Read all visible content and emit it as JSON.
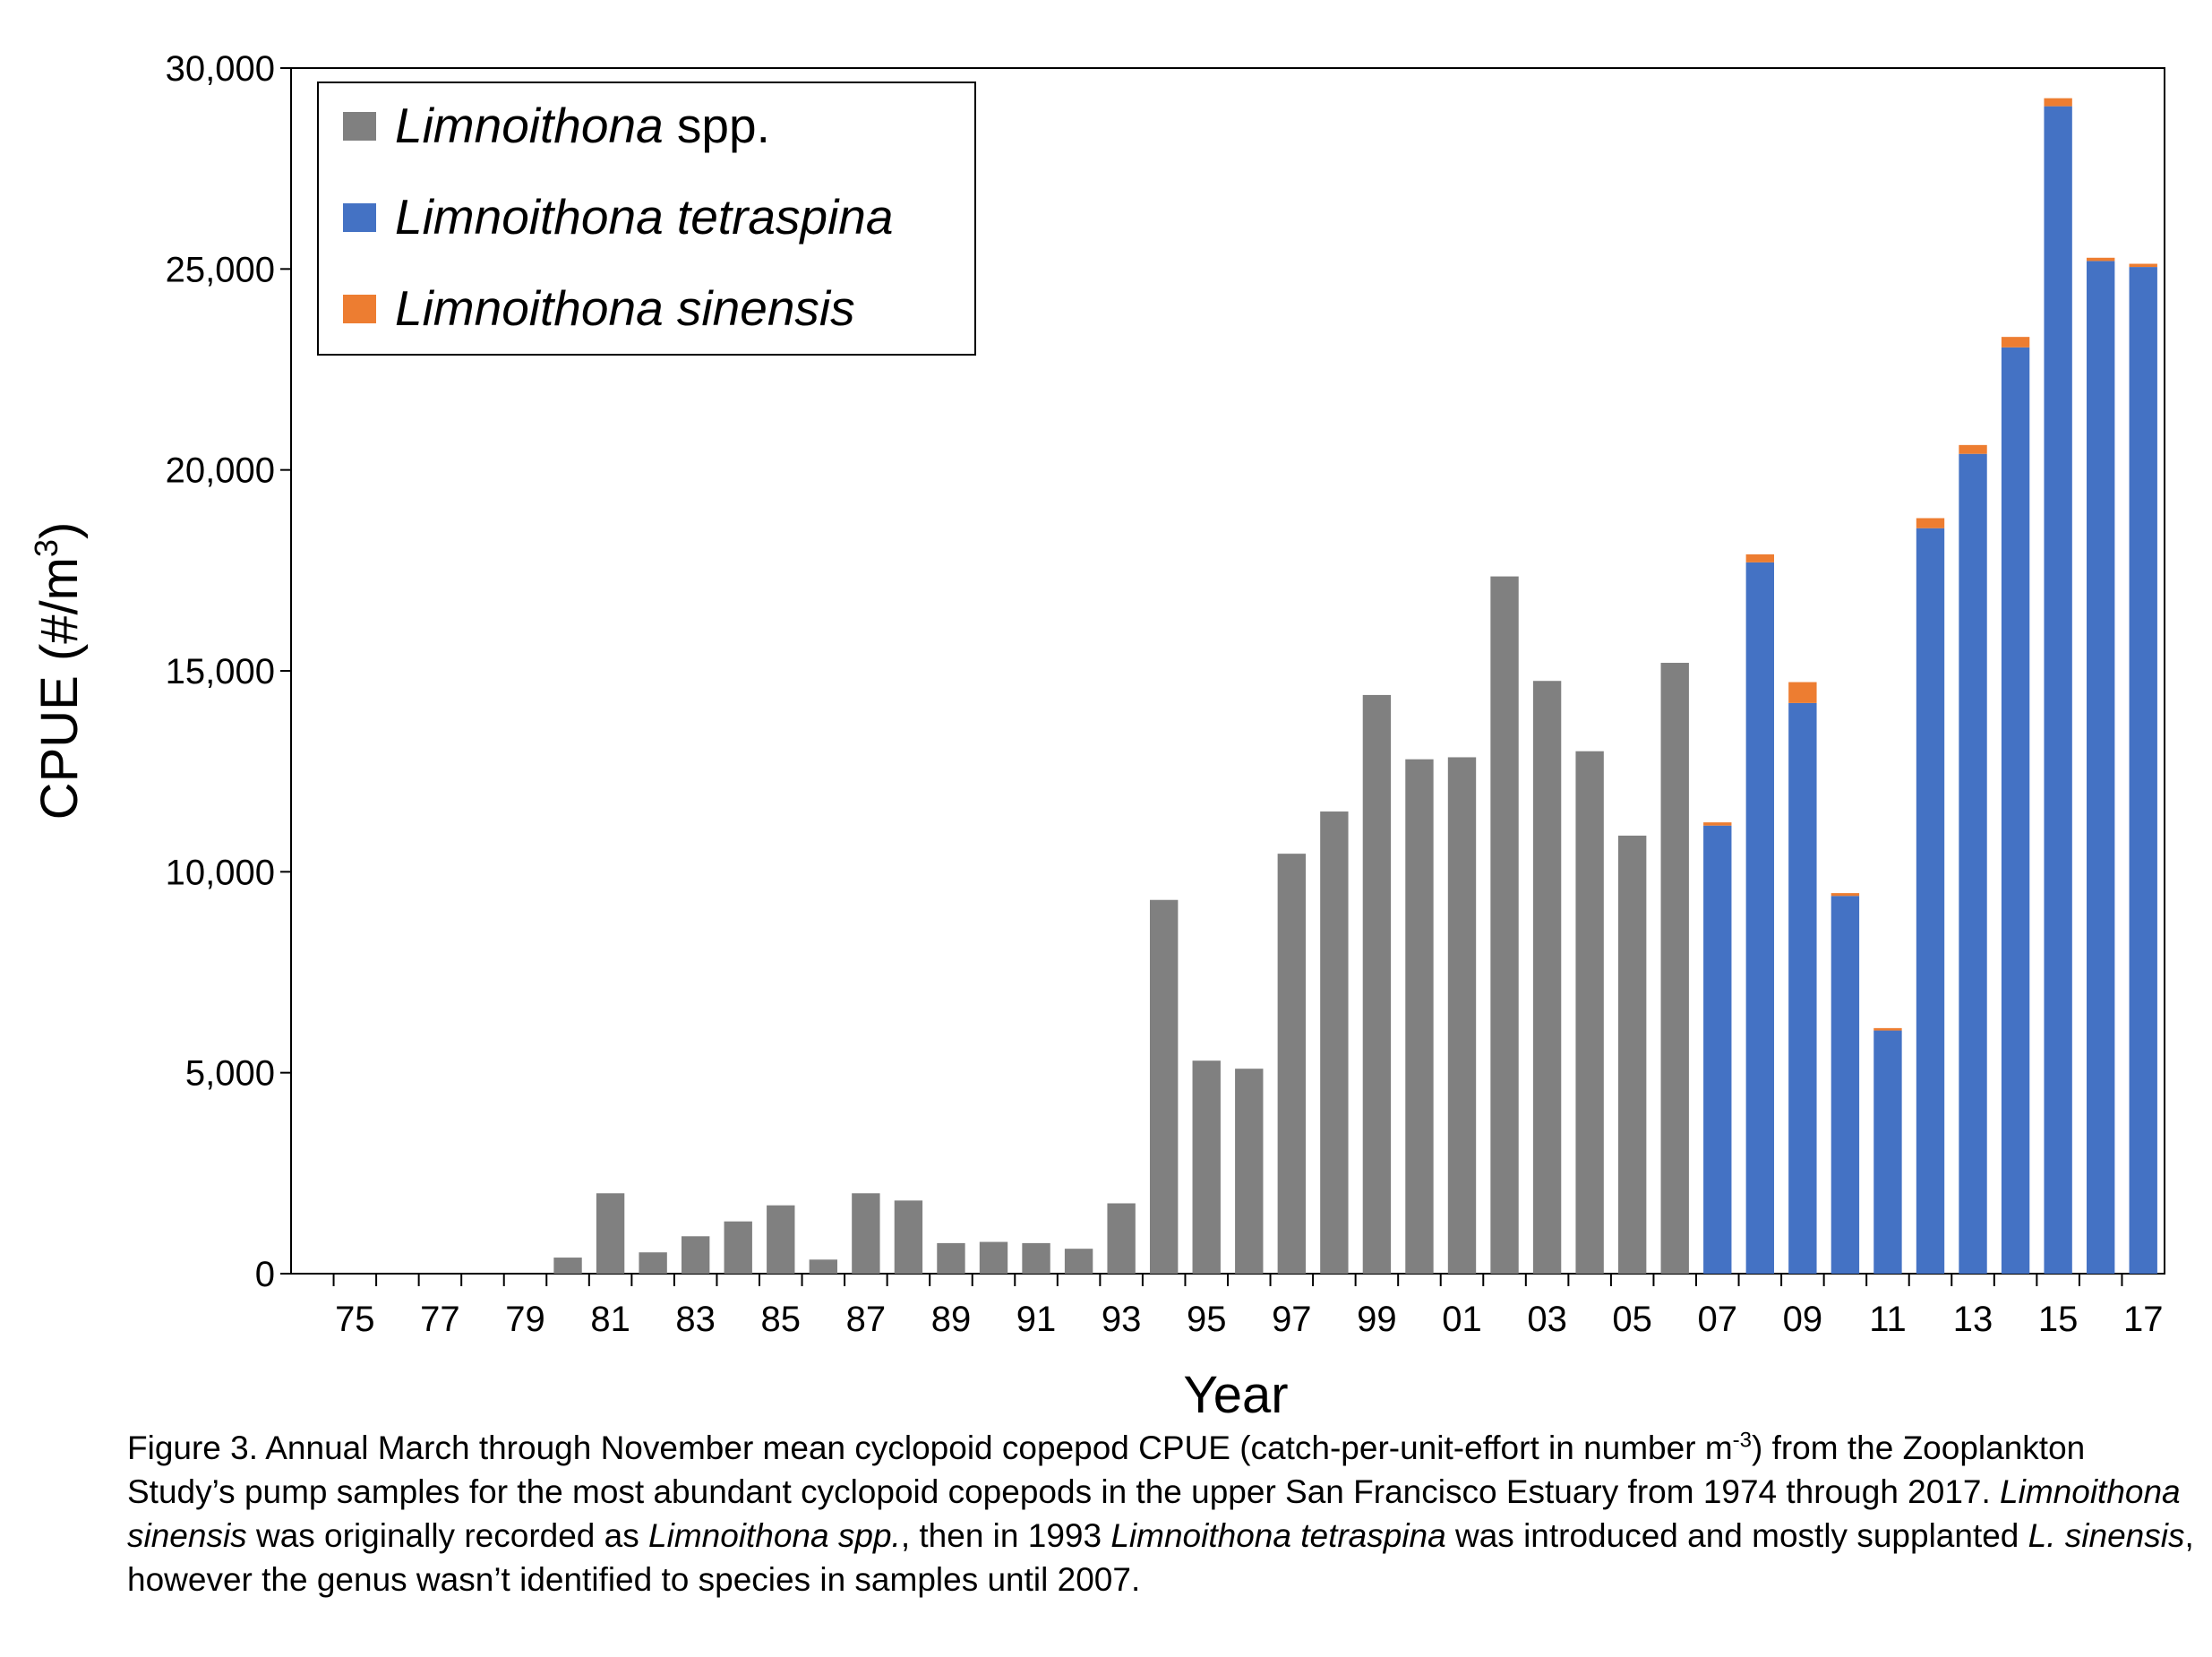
{
  "chart_data": {
    "type": "bar",
    "stacked": true,
    "x": [
      "74",
      "75",
      "76",
      "77",
      "78",
      "79",
      "80",
      "81",
      "82",
      "83",
      "84",
      "85",
      "86",
      "87",
      "88",
      "89",
      "90",
      "91",
      "92",
      "93",
      "94",
      "95",
      "96",
      "97",
      "98",
      "99",
      "00",
      "01",
      "02",
      "03",
      "04",
      "05",
      "06",
      "07",
      "08",
      "09",
      "10",
      "11",
      "12",
      "13",
      "14",
      "15",
      "16",
      "17"
    ],
    "tick_labels": [
      "75",
      "77",
      "79",
      "81",
      "83",
      "85",
      "87",
      "89",
      "91",
      "93",
      "95",
      "97",
      "99",
      "01",
      "03",
      "05",
      "07",
      "09",
      "11",
      "13",
      "15",
      "17"
    ],
    "series": [
      {
        "name": "Limnoithona",
        "name_suffix": " spp.",
        "color": "#808080",
        "values": [
          0,
          0,
          0,
          0,
          0,
          0,
          400,
          2000,
          530,
          930,
          1300,
          1700,
          350,
          2000,
          1820,
          760,
          790,
          760,
          620,
          1750,
          9300,
          5300,
          5100,
          10450,
          11500,
          14400,
          12800,
          12850,
          17350,
          14750,
          13000,
          10900,
          15200,
          0,
          0,
          0,
          0,
          0,
          0,
          0,
          0,
          0,
          0,
          0
        ]
      },
      {
        "name": "Limnoithona tetraspina",
        "name_suffix": "",
        "color": "#4472C4",
        "values": [
          0,
          0,
          0,
          0,
          0,
          0,
          0,
          0,
          0,
          0,
          0,
          0,
          0,
          0,
          0,
          0,
          0,
          0,
          0,
          0,
          0,
          0,
          0,
          0,
          0,
          0,
          0,
          0,
          0,
          0,
          0,
          0,
          0,
          11150,
          17700,
          14200,
          9400,
          6050,
          18550,
          20400,
          23050,
          29050,
          25200,
          25050
        ]
      },
      {
        "name": "Limnoithona sinensis",
        "name_suffix": "",
        "color": "#ED7D31",
        "values": [
          0,
          0,
          0,
          0,
          0,
          0,
          0,
          0,
          0,
          0,
          0,
          0,
          0,
          0,
          0,
          0,
          0,
          0,
          0,
          0,
          0,
          0,
          0,
          0,
          0,
          0,
          0,
          0,
          0,
          0,
          0,
          0,
          0,
          80,
          200,
          520,
          70,
          60,
          250,
          220,
          260,
          200,
          80,
          80
        ]
      }
    ],
    "ylim": [
      0,
      30000
    ],
    "yticks": [
      "0",
      "5,000",
      "10,000",
      "15,000",
      "20,000",
      "25,000",
      "30,000"
    ],
    "ylabel_main": "CPUE (#/m",
    "ylabel_sup": "3",
    "ylabel_end": ")",
    "xlabel": "Year",
    "legend_position": "top-left"
  },
  "caption": {
    "p1": "Figure 3. Annual March through November mean cyclopoid copepod CPUE (catch-per-unit-effort in number m",
    "p1_sup": "-3",
    "p2": ") from the Zooplankton Study’s pump samples for the most abundant cyclopoid copepods in the upper San Francisco Estuary from 1974 through 2017. ",
    "i1": "Limnoithona sinensis",
    "p3": " was originally recorded as ",
    "i2": "Limnoithona spp.",
    "p4": ", then in 1993 ",
    "i3": "Limnoithona tetraspina",
    "p5": " was introduced and mostly supplanted ",
    "i4": "L. sinensis",
    "p6": ", however the genus wasn’t identified to species in samples until 2007."
  }
}
